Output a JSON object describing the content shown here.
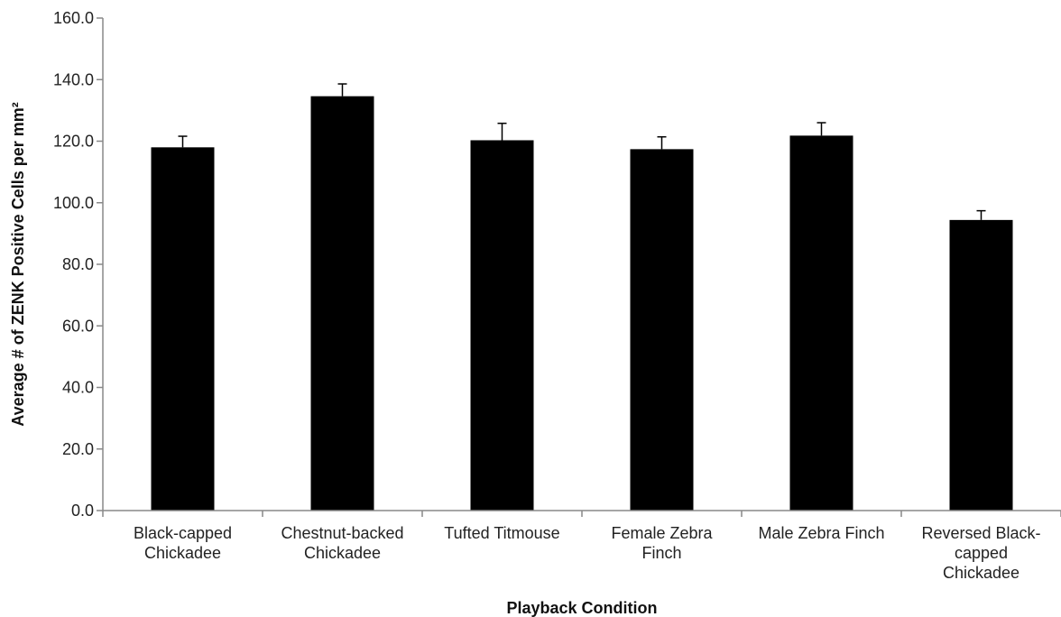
{
  "chart_data": {
    "type": "bar",
    "title": "",
    "xlabel": "Playback Condition",
    "ylabel": "Average # of ZENK Positive Cells per mm²",
    "ylim": [
      0,
      160
    ],
    "ytick_step": 20,
    "ytick_format_decimals": 1,
    "grid": false,
    "legend": "none",
    "bar_color": "#000000",
    "categories": [
      [
        "Black-capped",
        "Chickadee"
      ],
      [
        "Chestnut-backed",
        "Chickadee"
      ],
      [
        "Tufted Titmouse"
      ],
      [
        "Female Zebra",
        "Finch"
      ],
      [
        "Male Zebra Finch"
      ],
      [
        "Reversed Black-",
        "capped",
        "Chickadee"
      ]
    ],
    "values": [
      118.0,
      134.6,
      120.3,
      117.4,
      121.8,
      94.4
    ],
    "errors": [
      3.6,
      4.0,
      5.5,
      4.0,
      4.2,
      3.0
    ]
  }
}
